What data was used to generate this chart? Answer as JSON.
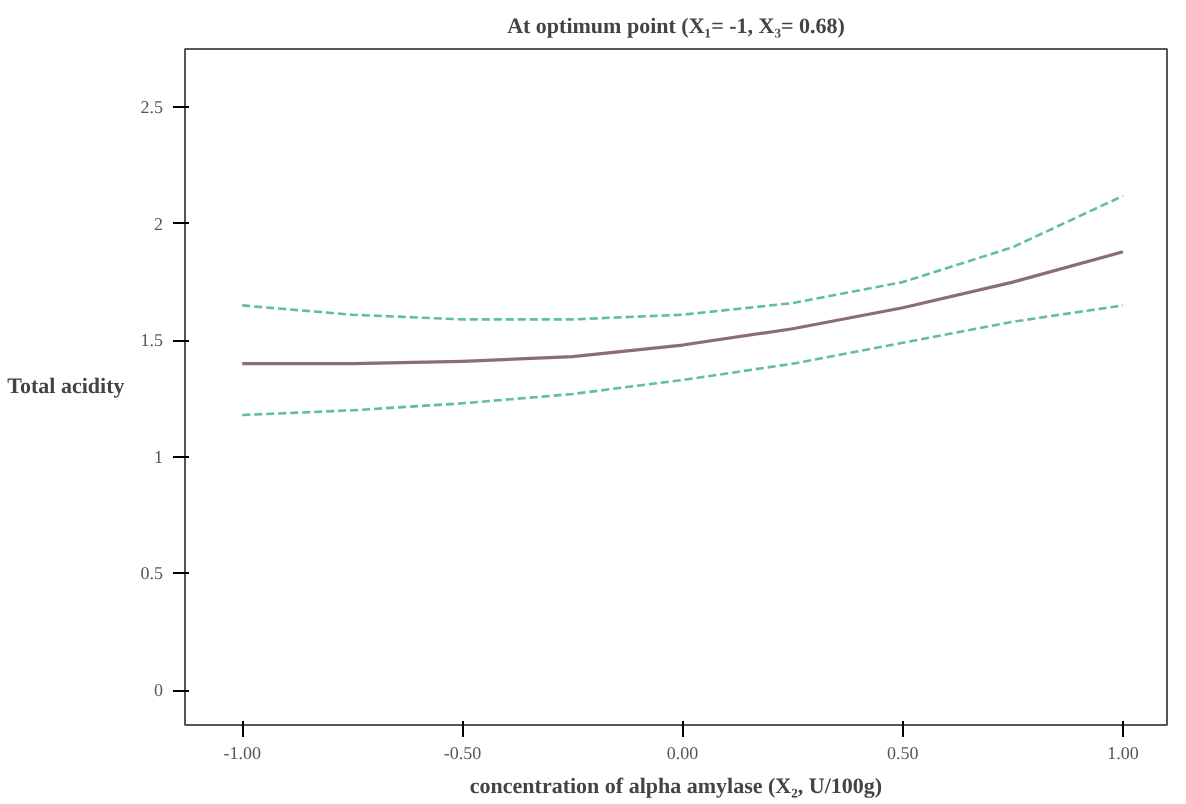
{
  "chart_data": {
    "type": "line",
    "title": "At optimum point (X₁= -1, X₃= 0.68)",
    "xlabel": "concentration of alpha amylase (X₂, U/100g)",
    "ylabel": "Total acidity",
    "x": [
      -1,
      -0.75,
      -0.5,
      -0.25,
      0,
      0.25,
      0.5,
      0.75,
      1
    ],
    "series": [
      {
        "color": "#8c6b7e",
        "line_style": "solid",
        "values": [
          1.4,
          1.4,
          1.41,
          1.43,
          1.48,
          1.55,
          1.64,
          1.75,
          1.88
        ]
      },
      {
        "color": "#5fbf9f",
        "line_style": "dashed",
        "values": [
          1.65,
          1.61,
          1.59,
          1.59,
          1.61,
          1.66,
          1.75,
          1.9,
          2.12
        ]
      },
      {
        "color": "#5fbf9f",
        "line_style": "dashed",
        "values": [
          1.18,
          1.2,
          1.23,
          1.27,
          1.33,
          1.4,
          1.49,
          1.58,
          1.65
        ]
      }
    ],
    "xlim": [
      -1.13,
      1.1
    ],
    "ylim": [
      -0.15,
      2.75
    ],
    "xticks": [
      {
        "value": -1,
        "label": "-1.00"
      },
      {
        "value": -0.5,
        "label": "-0.50"
      },
      {
        "value": 0,
        "label": "0.00"
      },
      {
        "value": 0.5,
        "label": "0.50"
      },
      {
        "value": 1,
        "label": "1.00"
      }
    ],
    "yticks": [
      0,
      {
        "value": 0.5,
        "label": "0.5"
      },
      1,
      1.5,
      2,
      2.5
    ],
    "grid": false,
    "marker": "none"
  }
}
